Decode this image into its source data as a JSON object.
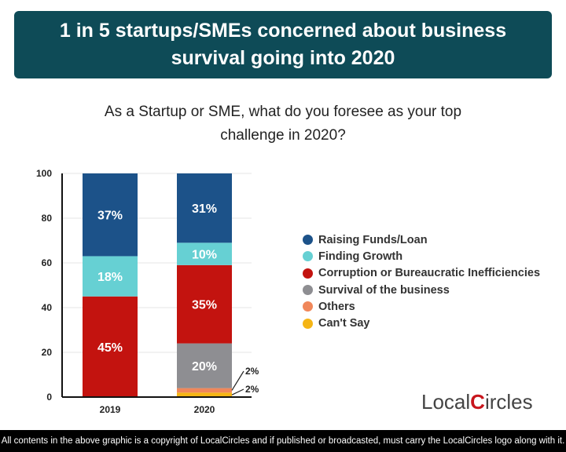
{
  "header": {
    "title": "1 in 5 startups/SMEs concerned about business survival going into 2020"
  },
  "question": "As a Startup or SME, what do you foresee as your top challenge in 2020?",
  "chart_data": {
    "type": "bar",
    "stacked": true,
    "categories": [
      "2019",
      "2020"
    ],
    "ylim": [
      0,
      100
    ],
    "yticks": [
      0,
      20,
      40,
      60,
      80,
      100
    ],
    "grid": true,
    "legend_position": "right",
    "series": [
      {
        "name": "Can't Say",
        "color": "#f5b515",
        "values": [
          0,
          2
        ],
        "labels": [
          "",
          "2%"
        ]
      },
      {
        "name": "Others",
        "color": "#f0875a",
        "values": [
          0,
          2
        ],
        "labels": [
          "",
          "2%"
        ]
      },
      {
        "name": "Survival of the business",
        "color": "#8e8e92",
        "values": [
          0,
          20
        ],
        "labels": [
          "",
          "20%"
        ]
      },
      {
        "name": "Corruption or Bureaucratic Inefficiencies",
        "color": "#c3130f",
        "values": [
          45,
          35
        ],
        "labels": [
          "45%",
          "35%"
        ]
      },
      {
        "name": "Finding Growth",
        "color": "#66d0d3",
        "values": [
          18,
          10
        ],
        "labels": [
          "18%",
          "10%"
        ]
      },
      {
        "name": "Raising Funds/Loan",
        "color": "#1c5289",
        "values": [
          37,
          31
        ],
        "labels": [
          "37%",
          "31%"
        ]
      }
    ]
  },
  "legend": [
    {
      "label": "Raising Funds/Loan",
      "color": "#1c5289"
    },
    {
      "label": "Finding Growth",
      "color": "#66d0d3"
    },
    {
      "label": "Corruption or Bureaucratic Inefficiencies",
      "color": "#c3130f"
    },
    {
      "label": "Survival of the business",
      "color": "#8e8e92"
    },
    {
      "label": "Others",
      "color": "#f0875a"
    },
    {
      "label": "Can't Say",
      "color": "#f5b515"
    }
  ],
  "logo": {
    "text": "LocalCircles"
  },
  "footer": "All contents in the above graphic is a copyright of LocalCircles and if published or broadcasted, must carry the LocalCircles logo along with it."
}
